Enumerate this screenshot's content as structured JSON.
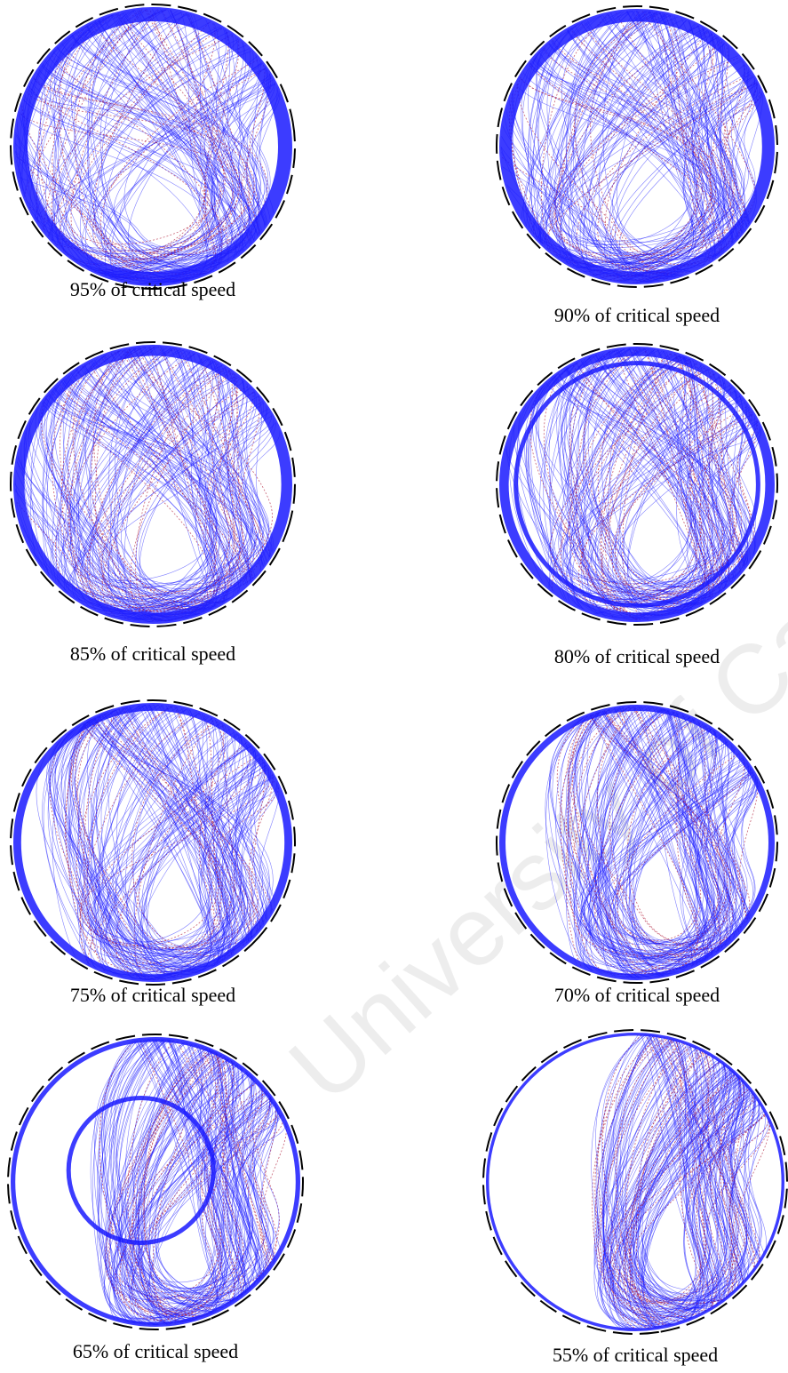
{
  "panels": [
    {
      "caption": "95% of critical speed"
    },
    {
      "caption": "90% of critical speed"
    },
    {
      "caption": "85% of critical speed"
    },
    {
      "caption": "80% of critical speed"
    },
    {
      "caption": "75% of critical speed"
    },
    {
      "caption": "70% of critical speed"
    },
    {
      "caption": "65% of critical speed"
    },
    {
      "caption": "55% of critical speed"
    }
  ],
  "watermark": "University of Cape Town"
}
